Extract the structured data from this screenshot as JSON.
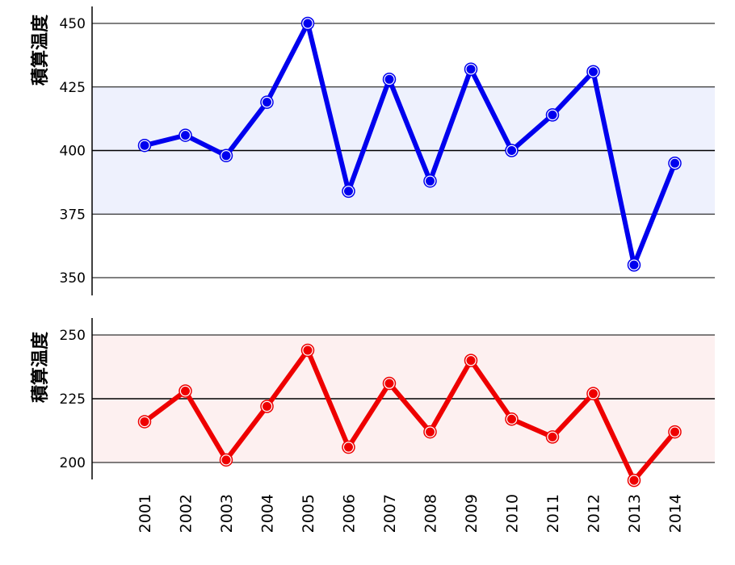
{
  "chart_data": [
    {
      "type": "line",
      "ylabel": "積算温度",
      "ylim": [
        342,
        457
      ],
      "yticks": [
        350,
        375,
        400,
        425,
        450
      ],
      "band": [
        375,
        425
      ],
      "mean_line": 400,
      "line_color": "#0000ee",
      "band_color": "#eef1fd",
      "x": [
        "2001",
        "2002",
        "2003",
        "2004",
        "2005",
        "2006",
        "2007",
        "2008",
        "2009",
        "2010",
        "2011",
        "2012",
        "2013",
        "2014"
      ],
      "values": [
        402,
        406,
        398,
        419,
        450,
        384,
        428,
        388,
        432,
        400,
        414,
        431,
        355,
        395
      ]
    },
    {
      "type": "line",
      "ylabel": "積算温度",
      "ylim": [
        193,
        256
      ],
      "yticks": [
        200,
        225,
        250
      ],
      "band": [
        200,
        250
      ],
      "mean_line": 225,
      "line_color": "#ee0000",
      "band_color": "#fdf0f0",
      "x": [
        "2001",
        "2002",
        "2003",
        "2004",
        "2005",
        "2006",
        "2007",
        "2008",
        "2009",
        "2010",
        "2011",
        "2012",
        "2013",
        "2014"
      ],
      "values": [
        216,
        228,
        201,
        222,
        244,
        206,
        231,
        212,
        240,
        217,
        210,
        227,
        193,
        212
      ]
    }
  ]
}
